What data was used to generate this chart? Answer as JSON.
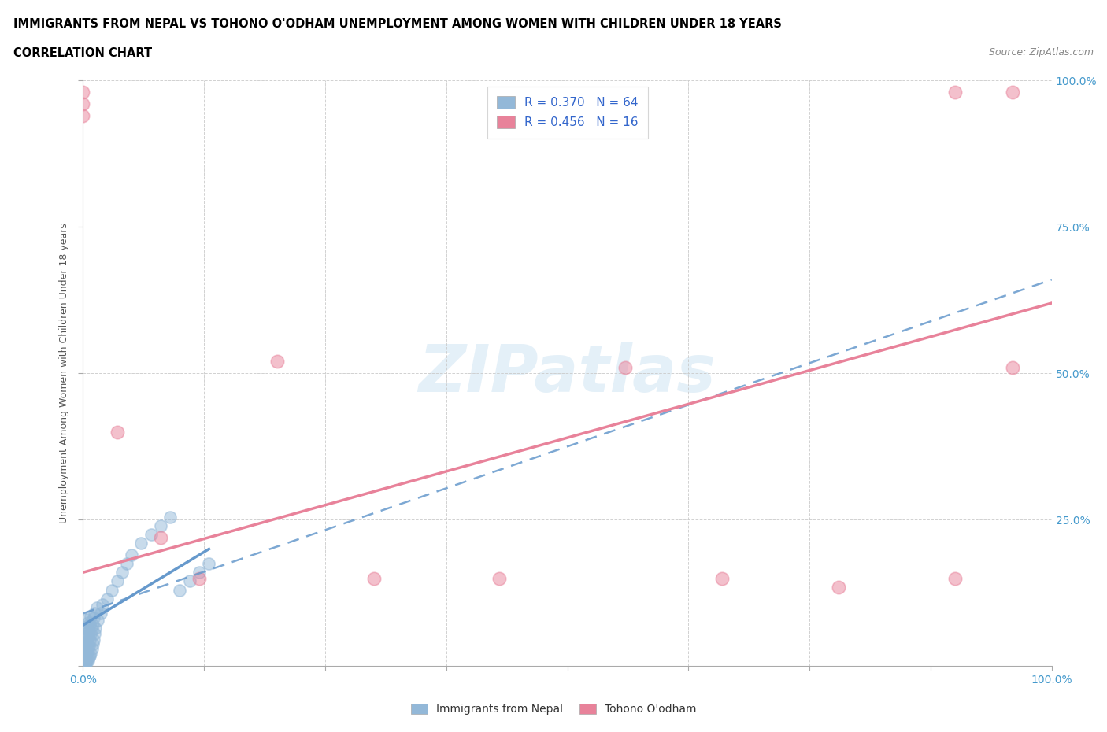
{
  "title_line1": "IMMIGRANTS FROM NEPAL VS TOHONO O'ODHAM UNEMPLOYMENT AMONG WOMEN WITH CHILDREN UNDER 18 YEARS",
  "title_line2": "CORRELATION CHART",
  "source": "Source: ZipAtlas.com",
  "ylabel": "Unemployment Among Women with Children Under 18 years",
  "xlim": [
    0.0,
    1.0
  ],
  "ylim": [
    0.0,
    1.0
  ],
  "watermark": "ZIPatlas",
  "nepal_color": "#93b8d8",
  "tohono_color": "#e8829a",
  "nepal_line_color": "#6699cc",
  "tohono_line_color": "#e8829a",
  "dash_line_color": "#6699cc",
  "nepal_R": 0.37,
  "nepal_N": 64,
  "tohono_R": 0.456,
  "tohono_N": 16,
  "background_color": "#ffffff",
  "grid_color": "#cccccc",
  "title_color": "#000000",
  "legend_R_color": "#3366cc",
  "axis_label_color": "#4499cc",
  "nepal_scatter_x": [
    0.0,
    0.001,
    0.0,
    0.002,
    0.001,
    0.0,
    0.003,
    0.002,
    0.001,
    0.0,
    0.004,
    0.003,
    0.002,
    0.001,
    0.0,
    0.005,
    0.004,
    0.003,
    0.002,
    0.001,
    0.006,
    0.005,
    0.004,
    0.003,
    0.002,
    0.007,
    0.006,
    0.005,
    0.004,
    0.003,
    0.008,
    0.007,
    0.006,
    0.005,
    0.009,
    0.008,
    0.007,
    0.01,
    0.009,
    0.008,
    0.011,
    0.01,
    0.012,
    0.011,
    0.013,
    0.012,
    0.015,
    0.014,
    0.018,
    0.02,
    0.025,
    0.03,
    0.035,
    0.04,
    0.045,
    0.05,
    0.06,
    0.07,
    0.08,
    0.09,
    0.1,
    0.11,
    0.12,
    0.13
  ],
  "nepal_scatter_y": [
    0.0,
    0.0,
    0.005,
    0.003,
    0.01,
    0.015,
    0.005,
    0.012,
    0.02,
    0.025,
    0.008,
    0.018,
    0.028,
    0.035,
    0.04,
    0.01,
    0.022,
    0.032,
    0.042,
    0.05,
    0.015,
    0.028,
    0.04,
    0.055,
    0.065,
    0.018,
    0.035,
    0.05,
    0.068,
    0.08,
    0.022,
    0.045,
    0.06,
    0.075,
    0.03,
    0.055,
    0.072,
    0.038,
    0.062,
    0.085,
    0.045,
    0.07,
    0.055,
    0.082,
    0.065,
    0.09,
    0.078,
    0.1,
    0.09,
    0.105,
    0.115,
    0.13,
    0.145,
    0.16,
    0.175,
    0.19,
    0.21,
    0.225,
    0.24,
    0.255,
    0.13,
    0.145,
    0.16,
    0.175
  ],
  "tohono_scatter_x": [
    0.0,
    0.0,
    0.0,
    0.035,
    0.08,
    0.12,
    0.2,
    0.3,
    0.43,
    0.56,
    0.66,
    0.78,
    0.9,
    0.96,
    0.96,
    0.9
  ],
  "tohono_scatter_y": [
    0.98,
    0.96,
    0.94,
    0.4,
    0.22,
    0.15,
    0.52,
    0.15,
    0.15,
    0.51,
    0.15,
    0.135,
    0.15,
    0.51,
    0.98,
    0.98
  ],
  "nepal_line_x": [
    0.0,
    0.13
  ],
  "nepal_line_y": [
    0.07,
    0.2
  ],
  "tohono_line_x": [
    0.0,
    1.0
  ],
  "tohono_line_y": [
    0.16,
    0.62
  ],
  "dash_line_x": [
    0.0,
    1.0
  ],
  "dash_line_y": [
    0.09,
    0.66
  ]
}
